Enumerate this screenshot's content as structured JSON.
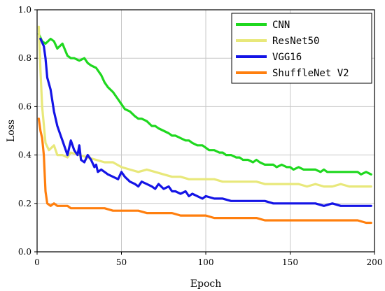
{
  "chart_data": {
    "type": "line",
    "title": "",
    "xlabel": "Epoch",
    "ylabel": "Loss",
    "xlim": [
      0,
      200
    ],
    "ylim": [
      0,
      1.0
    ],
    "xticks": [
      "0",
      "50",
      "100",
      "150",
      "200"
    ],
    "yticks": [
      "0.0",
      "0.2",
      "0.4",
      "0.6",
      "0.8",
      "1.0"
    ],
    "grid": true,
    "legend": "top-right",
    "series": [
      {
        "name": "CNN",
        "color": "#1fd81f",
        "x": [
          1,
          3,
          5,
          8,
          10,
          12,
          15,
          18,
          20,
          22,
          25,
          28,
          30,
          32,
          35,
          38,
          40,
          42,
          45,
          48,
          50,
          52,
          55,
          58,
          60,
          62,
          65,
          68,
          70,
          72,
          75,
          78,
          80,
          82,
          85,
          88,
          90,
          92,
          95,
          98,
          100,
          102,
          105,
          108,
          110,
          112,
          115,
          118,
          120,
          122,
          125,
          128,
          130,
          132,
          135,
          138,
          140,
          142,
          145,
          148,
          150,
          152,
          155,
          158,
          160,
          162,
          165,
          168,
          170,
          172,
          175,
          178,
          180,
          182,
          185,
          188,
          190,
          192,
          195,
          198
        ],
        "values": [
          0.9,
          0.87,
          0.86,
          0.88,
          0.87,
          0.84,
          0.86,
          0.81,
          0.8,
          0.8,
          0.79,
          0.8,
          0.78,
          0.77,
          0.76,
          0.73,
          0.7,
          0.68,
          0.66,
          0.63,
          0.61,
          0.59,
          0.58,
          0.56,
          0.55,
          0.55,
          0.54,
          0.52,
          0.52,
          0.51,
          0.5,
          0.49,
          0.48,
          0.48,
          0.47,
          0.46,
          0.46,
          0.45,
          0.44,
          0.44,
          0.43,
          0.42,
          0.42,
          0.41,
          0.41,
          0.4,
          0.4,
          0.39,
          0.39,
          0.38,
          0.38,
          0.37,
          0.38,
          0.37,
          0.36,
          0.36,
          0.36,
          0.35,
          0.36,
          0.35,
          0.35,
          0.34,
          0.35,
          0.34,
          0.34,
          0.34,
          0.34,
          0.33,
          0.34,
          0.33,
          0.33,
          0.33,
          0.33,
          0.33,
          0.33,
          0.33,
          0.33,
          0.32,
          0.33,
          0.32
        ]
      },
      {
        "name": "ResNet50",
        "color": "#e8e87a",
        "x": [
          1,
          2,
          3,
          5,
          7,
          10,
          12,
          15,
          18,
          20,
          25,
          30,
          35,
          40,
          45,
          50,
          55,
          60,
          65,
          70,
          75,
          80,
          85,
          90,
          95,
          100,
          105,
          110,
          115,
          120,
          125,
          130,
          135,
          140,
          145,
          150,
          155,
          160,
          165,
          170,
          175,
          180,
          185,
          190,
          195,
          198
        ],
        "values": [
          0.93,
          0.75,
          0.6,
          0.45,
          0.42,
          0.44,
          0.4,
          0.4,
          0.39,
          0.41,
          0.4,
          0.39,
          0.38,
          0.37,
          0.37,
          0.35,
          0.34,
          0.33,
          0.34,
          0.33,
          0.32,
          0.31,
          0.31,
          0.3,
          0.3,
          0.3,
          0.3,
          0.29,
          0.29,
          0.29,
          0.29,
          0.29,
          0.28,
          0.28,
          0.28,
          0.28,
          0.28,
          0.27,
          0.28,
          0.27,
          0.27,
          0.28,
          0.27,
          0.27,
          0.27,
          0.27
        ]
      },
      {
        "name": "VGG16",
        "color": "#1414e6",
        "x": [
          2,
          4,
          5,
          6,
          8,
          10,
          12,
          14,
          15,
          16,
          18,
          20,
          22,
          24,
          25,
          26,
          28,
          30,
          32,
          34,
          35,
          36,
          38,
          40,
          42,
          45,
          48,
          50,
          52,
          55,
          58,
          60,
          62,
          65,
          68,
          70,
          72,
          75,
          78,
          80,
          82,
          85,
          88,
          90,
          92,
          95,
          98,
          100,
          105,
          110,
          115,
          120,
          125,
          130,
          135,
          140,
          145,
          150,
          155,
          160,
          165,
          170,
          175,
          180,
          185,
          190,
          195,
          198
        ],
        "values": [
          0.88,
          0.85,
          0.8,
          0.72,
          0.67,
          0.58,
          0.52,
          0.48,
          0.46,
          0.44,
          0.4,
          0.46,
          0.42,
          0.4,
          0.44,
          0.38,
          0.37,
          0.4,
          0.38,
          0.35,
          0.36,
          0.33,
          0.34,
          0.33,
          0.32,
          0.31,
          0.3,
          0.33,
          0.31,
          0.29,
          0.28,
          0.27,
          0.29,
          0.28,
          0.27,
          0.26,
          0.28,
          0.26,
          0.27,
          0.25,
          0.25,
          0.24,
          0.25,
          0.23,
          0.24,
          0.23,
          0.22,
          0.23,
          0.22,
          0.22,
          0.21,
          0.21,
          0.21,
          0.21,
          0.21,
          0.2,
          0.2,
          0.2,
          0.2,
          0.2,
          0.2,
          0.19,
          0.2,
          0.19,
          0.19,
          0.19,
          0.19,
          0.19
        ]
      },
      {
        "name": "ShuffleNet V2",
        "color": "#ff7f0e",
        "x": [
          1,
          2,
          3,
          4,
          5,
          6,
          8,
          10,
          12,
          15,
          18,
          20,
          25,
          30,
          35,
          40,
          45,
          50,
          55,
          60,
          65,
          70,
          75,
          80,
          85,
          90,
          95,
          100,
          105,
          110,
          115,
          120,
          125,
          130,
          135,
          140,
          145,
          150,
          155,
          160,
          165,
          170,
          175,
          180,
          185,
          190,
          195,
          198
        ],
        "values": [
          0.55,
          0.5,
          0.47,
          0.4,
          0.25,
          0.2,
          0.19,
          0.2,
          0.19,
          0.19,
          0.19,
          0.18,
          0.18,
          0.18,
          0.18,
          0.18,
          0.17,
          0.17,
          0.17,
          0.17,
          0.16,
          0.16,
          0.16,
          0.16,
          0.15,
          0.15,
          0.15,
          0.15,
          0.14,
          0.14,
          0.14,
          0.14,
          0.14,
          0.14,
          0.13,
          0.13,
          0.13,
          0.13,
          0.13,
          0.13,
          0.13,
          0.13,
          0.13,
          0.13,
          0.13,
          0.13,
          0.12,
          0.12
        ]
      }
    ]
  }
}
